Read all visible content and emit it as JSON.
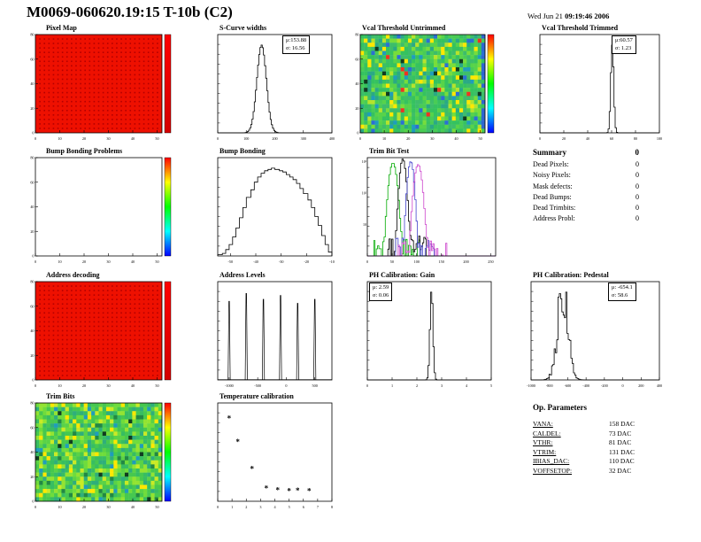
{
  "header": {
    "title": "M0069-060620.19:15 T-10b (C2)",
    "date_normal": "Wed Jun 21",
    "date_bold": "09:19:46 2006"
  },
  "summary": {
    "title": "Summary",
    "chip": "0",
    "rows": [
      [
        "Dead Pixels:",
        "0"
      ],
      [
        "Noisy Pixels:",
        "0"
      ],
      [
        "Mask defects:",
        "0"
      ],
      [
        "Dead Bumps:",
        "0"
      ],
      [
        "Dead Trimbits:",
        "0"
      ],
      [
        "Address Probl:",
        "0"
      ]
    ]
  },
  "op_parameters": {
    "title": "Op. Parameters",
    "rows": [
      [
        "VANA:",
        "158 DAC"
      ],
      [
        "CALDEL:",
        "73 DAC"
      ],
      [
        "VTHR:",
        "81 DAC"
      ],
      [
        "VTRIM:",
        "131 DAC"
      ],
      [
        "IBIAS_DAC:",
        "110 DAC"
      ],
      [
        "VOFFSETOP:",
        "32 DAC"
      ]
    ]
  },
  "chart_data": [
    {
      "type": "heatmap",
      "title": "Pixel Map",
      "style": "uniform",
      "base_color": "#ee1000",
      "dot_color": "#b30000",
      "xlim": [
        0,
        52
      ],
      "ylim": [
        0,
        80
      ],
      "xticks": [
        0,
        10,
        20,
        30,
        40,
        50
      ],
      "yticks": [
        0,
        20,
        40,
        60,
        80
      ],
      "colorbar": [
        "#ff0000",
        "#d40000"
      ]
    },
    {
      "type": "histogram",
      "title": "S-Curve widths",
      "xlim": [
        0,
        400
      ],
      "xticks": [
        0,
        100,
        200,
        300,
        400
      ],
      "series": [
        {
          "color": "#000000",
          "dist": "gauss",
          "mu": 153.88,
          "sigma": 16.56,
          "amp": 1000
        }
      ],
      "stats": {
        "pos": "tr",
        "lines": [
          "μ:153.88",
          "σ: 16.56"
        ]
      }
    },
    {
      "type": "heatmap",
      "title": "Vcal Threshold Untrimmed",
      "style": "noise",
      "xlim": [
        0,
        52
      ],
      "ylim": [
        0,
        80
      ],
      "xticks": [
        0,
        10,
        20,
        30,
        40,
        50
      ],
      "yticks": [
        0,
        20,
        40,
        60,
        80
      ],
      "palette": [
        {
          "c": "#35c25f",
          "w": 16
        },
        {
          "c": "#3dbd6a",
          "w": 14
        },
        {
          "c": "#49cc55",
          "w": 12
        },
        {
          "c": "#2aa985",
          "w": 8
        },
        {
          "c": "#57d34a",
          "w": 10
        },
        {
          "c": "#77dd3b",
          "w": 7
        },
        {
          "c": "#b5e32c",
          "w": 4
        },
        {
          "c": "#ffe800",
          "w": 4
        },
        {
          "c": "#1f9dbb",
          "w": 4
        },
        {
          "c": "#2b6fd4",
          "w": 2
        },
        {
          "c": "#103c20",
          "w": 1
        },
        {
          "c": "#ee3322",
          "w": 1
        }
      ],
      "right_edge_color": "#2e66d0",
      "colorbar": [
        "#ff0000",
        "#ffff00",
        "#00ff00",
        "#00ffff",
        "#0000ff"
      ]
    },
    {
      "type": "histogram",
      "title": "Vcal Threshold Trimmed",
      "xlim": [
        0,
        100
      ],
      "xticks": [
        0,
        20,
        40,
        60,
        80,
        100
      ],
      "series": [
        {
          "color": "#000000",
          "dist": "gauss",
          "mu": 60.57,
          "sigma": 1.23,
          "amp": 1000
        }
      ],
      "stats": {
        "pos": "tr",
        "lines": [
          "μ:60.57",
          "σ: 1.23"
        ]
      }
    },
    {
      "type": "empty2d",
      "title": "Bump Bonding Problems",
      "xlim": [
        0,
        52
      ],
      "ylim": [
        0,
        80
      ],
      "xticks": [
        0,
        10,
        20,
        30,
        40,
        50
      ],
      "yticks": [
        0,
        20,
        40,
        60,
        80
      ],
      "colorbar": [
        "#ff0000",
        "#ffff00",
        "#00ff00",
        "#00ffff",
        "#0000ff"
      ]
    },
    {
      "type": "histogram",
      "title": "Bump Bonding",
      "xlim": [
        -55,
        -10
      ],
      "xticks": [
        -50,
        -40,
        -30,
        -20,
        -10
      ],
      "series": [
        {
          "color": "#000000",
          "values": [
            1,
            2,
            5,
            9,
            15,
            22,
            30,
            38,
            46,
            52,
            58,
            62,
            65,
            67,
            68,
            69,
            68,
            67,
            66,
            64,
            62,
            60,
            57,
            53,
            49,
            44,
            38,
            31,
            24,
            16,
            9,
            3
          ]
        }
      ]
    },
    {
      "type": "histogram",
      "title": "Trim Bit Test",
      "ylog": true,
      "xlim": [
        0,
        260
      ],
      "xticks": [
        0,
        50,
        100,
        150,
        200,
        250
      ],
      "series": [
        {
          "color": "#00aa00",
          "dist": "gauss",
          "mu": 52,
          "sigma": 5,
          "amp": 900
        },
        {
          "color": "#000000",
          "dist": "gauss",
          "mu": 72,
          "sigma": 4,
          "amp": 1200
        },
        {
          "color": "#4444cc",
          "dist": "gauss",
          "mu": 88,
          "sigma": 4,
          "amp": 1000
        },
        {
          "color": "#cc44cc",
          "dist": "gauss",
          "mu": 103,
          "sigma": 5,
          "amp": 800
        }
      ]
    },
    {
      "type": "heatmap",
      "title": "Address decoding",
      "style": "uniform",
      "base_color": "#ee1000",
      "dot_color": "#b30000",
      "xlim": [
        0,
        52
      ],
      "ylim": [
        0,
        80
      ],
      "xticks": [
        0,
        10,
        20,
        30,
        40,
        50
      ],
      "yticks": [
        0,
        20,
        40,
        60,
        80
      ],
      "colorbar": [
        "#ff0000",
        "#d40000"
      ]
    },
    {
      "type": "spikes",
      "title": "Address Levels",
      "color": "#000000",
      "xlim": [
        -1200,
        800
      ],
      "xticks": [
        -1000,
        -500,
        0,
        500
      ],
      "spikes": [
        {
          "x": -1000,
          "h": 0.8
        },
        {
          "x": -700,
          "h": 0.88
        },
        {
          "x": -400,
          "h": 0.82
        },
        {
          "x": -100,
          "h": 0.86
        },
        {
          "x": 200,
          "h": 0.78
        },
        {
          "x": 500,
          "h": 0.82
        }
      ]
    },
    {
      "type": "histogram",
      "title": "PH Calibration: Gain",
      "xlim": [
        0,
        5
      ],
      "xticks": [
        0,
        1,
        2,
        3,
        4,
        5
      ],
      "series": [
        {
          "color": "#000000",
          "dist": "gauss",
          "mu": 2.59,
          "sigma": 0.06,
          "amp": 1000
        }
      ],
      "stats": {
        "pos": "tl",
        "lines": [
          "μ: 2.59",
          "σ: 0.06"
        ]
      }
    },
    {
      "type": "histogram",
      "title": "PH Calibration: Pedestal",
      "jitter": true,
      "xlim": [
        -1000,
        400
      ],
      "xticks": [
        -1000,
        -800,
        -600,
        -400,
        -200,
        0,
        200,
        400
      ],
      "series": [
        {
          "color": "#000000",
          "dist": "gauss",
          "mu": -654.1,
          "sigma": 58.6,
          "amp": 1000
        }
      ],
      "stats": {
        "pos": "tr",
        "lines": [
          "μ: -654.1",
          "σ: 58.6"
        ]
      }
    },
    {
      "type": "heatmap",
      "title": "Trim Bits",
      "style": "noise",
      "xlim": [
        0,
        52
      ],
      "ylim": [
        0,
        80
      ],
      "xticks": [
        0,
        10,
        20,
        30,
        40,
        50
      ],
      "yticks": [
        0,
        20,
        40,
        60,
        80
      ],
      "palette": [
        {
          "c": "#46c84f",
          "w": 16
        },
        {
          "c": "#5ad246",
          "w": 13
        },
        {
          "c": "#37bd62",
          "w": 13
        },
        {
          "c": "#6fdc3c",
          "w": 11
        },
        {
          "c": "#93e332",
          "w": 8
        },
        {
          "c": "#c9ea26",
          "w": 6
        },
        {
          "c": "#ffe800",
          "w": 5
        },
        {
          "c": "#2fae7b",
          "w": 9
        },
        {
          "c": "#1f9dbb",
          "w": 3
        },
        {
          "c": "#228844",
          "w": 3
        },
        {
          "c": "#103c20",
          "w": 1
        }
      ],
      "colorbar": [
        "#ff0000",
        "#ffff00",
        "#00ff00",
        "#00ffff",
        "#0000ff"
      ]
    },
    {
      "type": "scatter",
      "title": "Temperature calibration",
      "marker": "*",
      "xlim": [
        0,
        8
      ],
      "ylim": [
        0,
        500
      ],
      "xticks": [
        0,
        1,
        2,
        3,
        4,
        5,
        6,
        7,
        8
      ],
      "points": [
        [
          0.8,
          420
        ],
        [
          1.4,
          300
        ],
        [
          2.4,
          162
        ],
        [
          3.4,
          62
        ],
        [
          4.2,
          55
        ],
        [
          5.0,
          50
        ],
        [
          5.6,
          52
        ],
        [
          6.4,
          50
        ]
      ]
    }
  ]
}
